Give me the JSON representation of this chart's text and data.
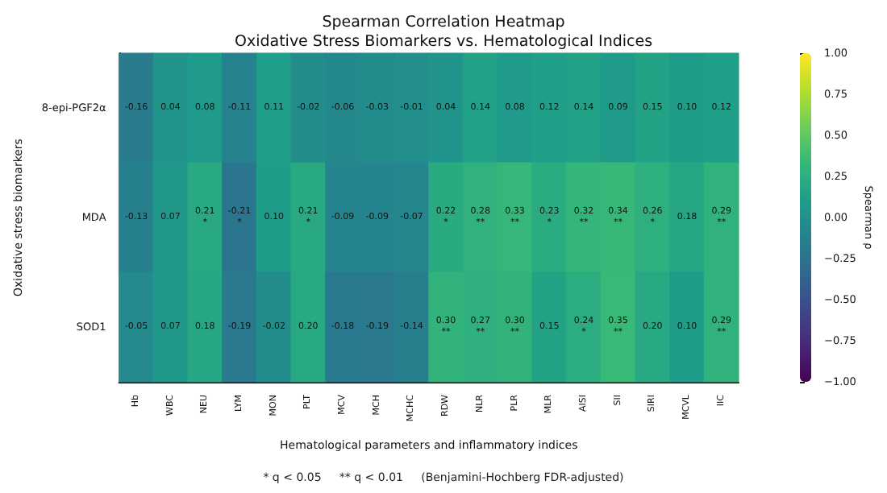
{
  "chart_data": {
    "type": "heatmap",
    "title": "Spearman Correlation Heatmap",
    "subtitle": "Oxidative Stress Biomarkers vs. Hematological Indices",
    "xlabel": "Hematological parameters and inflammatory indices",
    "ylabel": "Oxidative stress biomarkers",
    "clabel": "Spearman ρ",
    "annotations": [
      "* q < 0.05     ** q < 0.01     (Benjamini-Hochberg FDR-adjusted)"
    ],
    "categories": [
      "Hb",
      "WBC",
      "NEU",
      "LYM",
      "MON",
      "PLT",
      "MCV",
      "MCH",
      "MCHC",
      "RDW",
      "NLR",
      "PLR",
      "MLR",
      "AISI",
      "SII",
      "SIRI",
      "MCVL",
      "IIC"
    ],
    "y_categories": [
      "8-epi-PGF2α",
      "MDA",
      "SOD1"
    ],
    "cells": [
      [
        -0.16,
        0.04,
        0.08,
        -0.11,
        0.11,
        -0.02,
        -0.06,
        -0.03,
        -0.01,
        0.04,
        0.14,
        0.08,
        0.12,
        0.14,
        0.09,
        0.15,
        0.1,
        0.12
      ],
      [
        -0.13,
        0.07,
        0.21,
        -0.21,
        0.1,
        0.21,
        -0.09,
        -0.09,
        -0.07,
        0.22,
        0.28,
        0.33,
        0.23,
        0.32,
        0.34,
        0.26,
        0.18,
        0.29
      ],
      [
        -0.05,
        0.07,
        0.18,
        -0.19,
        -0.02,
        0.2,
        -0.18,
        -0.19,
        -0.14,
        0.3,
        0.27,
        0.3,
        0.15,
        0.24,
        0.35,
        0.2,
        0.1,
        0.29
      ]
    ],
    "cell_labels": [
      [
        "-0.16",
        "0.04",
        "0.08",
        "-0.11",
        "0.11",
        "-0.02",
        "-0.06",
        "-0.03",
        "-0.01",
        "0.04",
        "0.14",
        "0.08",
        "0.12",
        "0.14",
        "0.09",
        "0.15",
        "0.10",
        "0.12"
      ],
      [
        "-0.13",
        "0.07",
        "0.21\n*",
        "-0.21\n*",
        "0.10",
        "0.21\n*",
        "-0.09",
        "-0.09",
        "-0.07",
        "0.22\n*",
        "0.28\n**",
        "0.33\n**",
        "0.23\n*",
        "0.32\n**",
        "0.34\n**",
        "0.26\n*",
        "0.18",
        "0.29\n**"
      ],
      [
        "-0.05",
        "0.07",
        "0.18",
        "-0.19",
        "-0.02",
        "0.20",
        "-0.18",
        "-0.19",
        "-0.14",
        "0.30\n**",
        "0.27\n**",
        "0.30\n**",
        "0.15",
        "0.24\n*",
        "0.35\n**",
        "0.20",
        "0.10",
        "0.29\n**"
      ]
    ],
    "clim": [
      -1,
      1
    ],
    "cticks": [
      {
        "value": -1,
        "label": "−1.00"
      },
      {
        "value": -0.75,
        "label": "−0.75"
      },
      {
        "value": -0.5,
        "label": "−0.50"
      },
      {
        "value": -0.25,
        "label": "−0.25"
      },
      {
        "value": 0,
        "label": "0.00"
      },
      {
        "value": 0.25,
        "label": "0.25"
      },
      {
        "value": 0.5,
        "label": "0.50"
      },
      {
        "value": 0.75,
        "label": "0.75"
      },
      {
        "value": 1,
        "label": "1.00"
      }
    ]
  }
}
